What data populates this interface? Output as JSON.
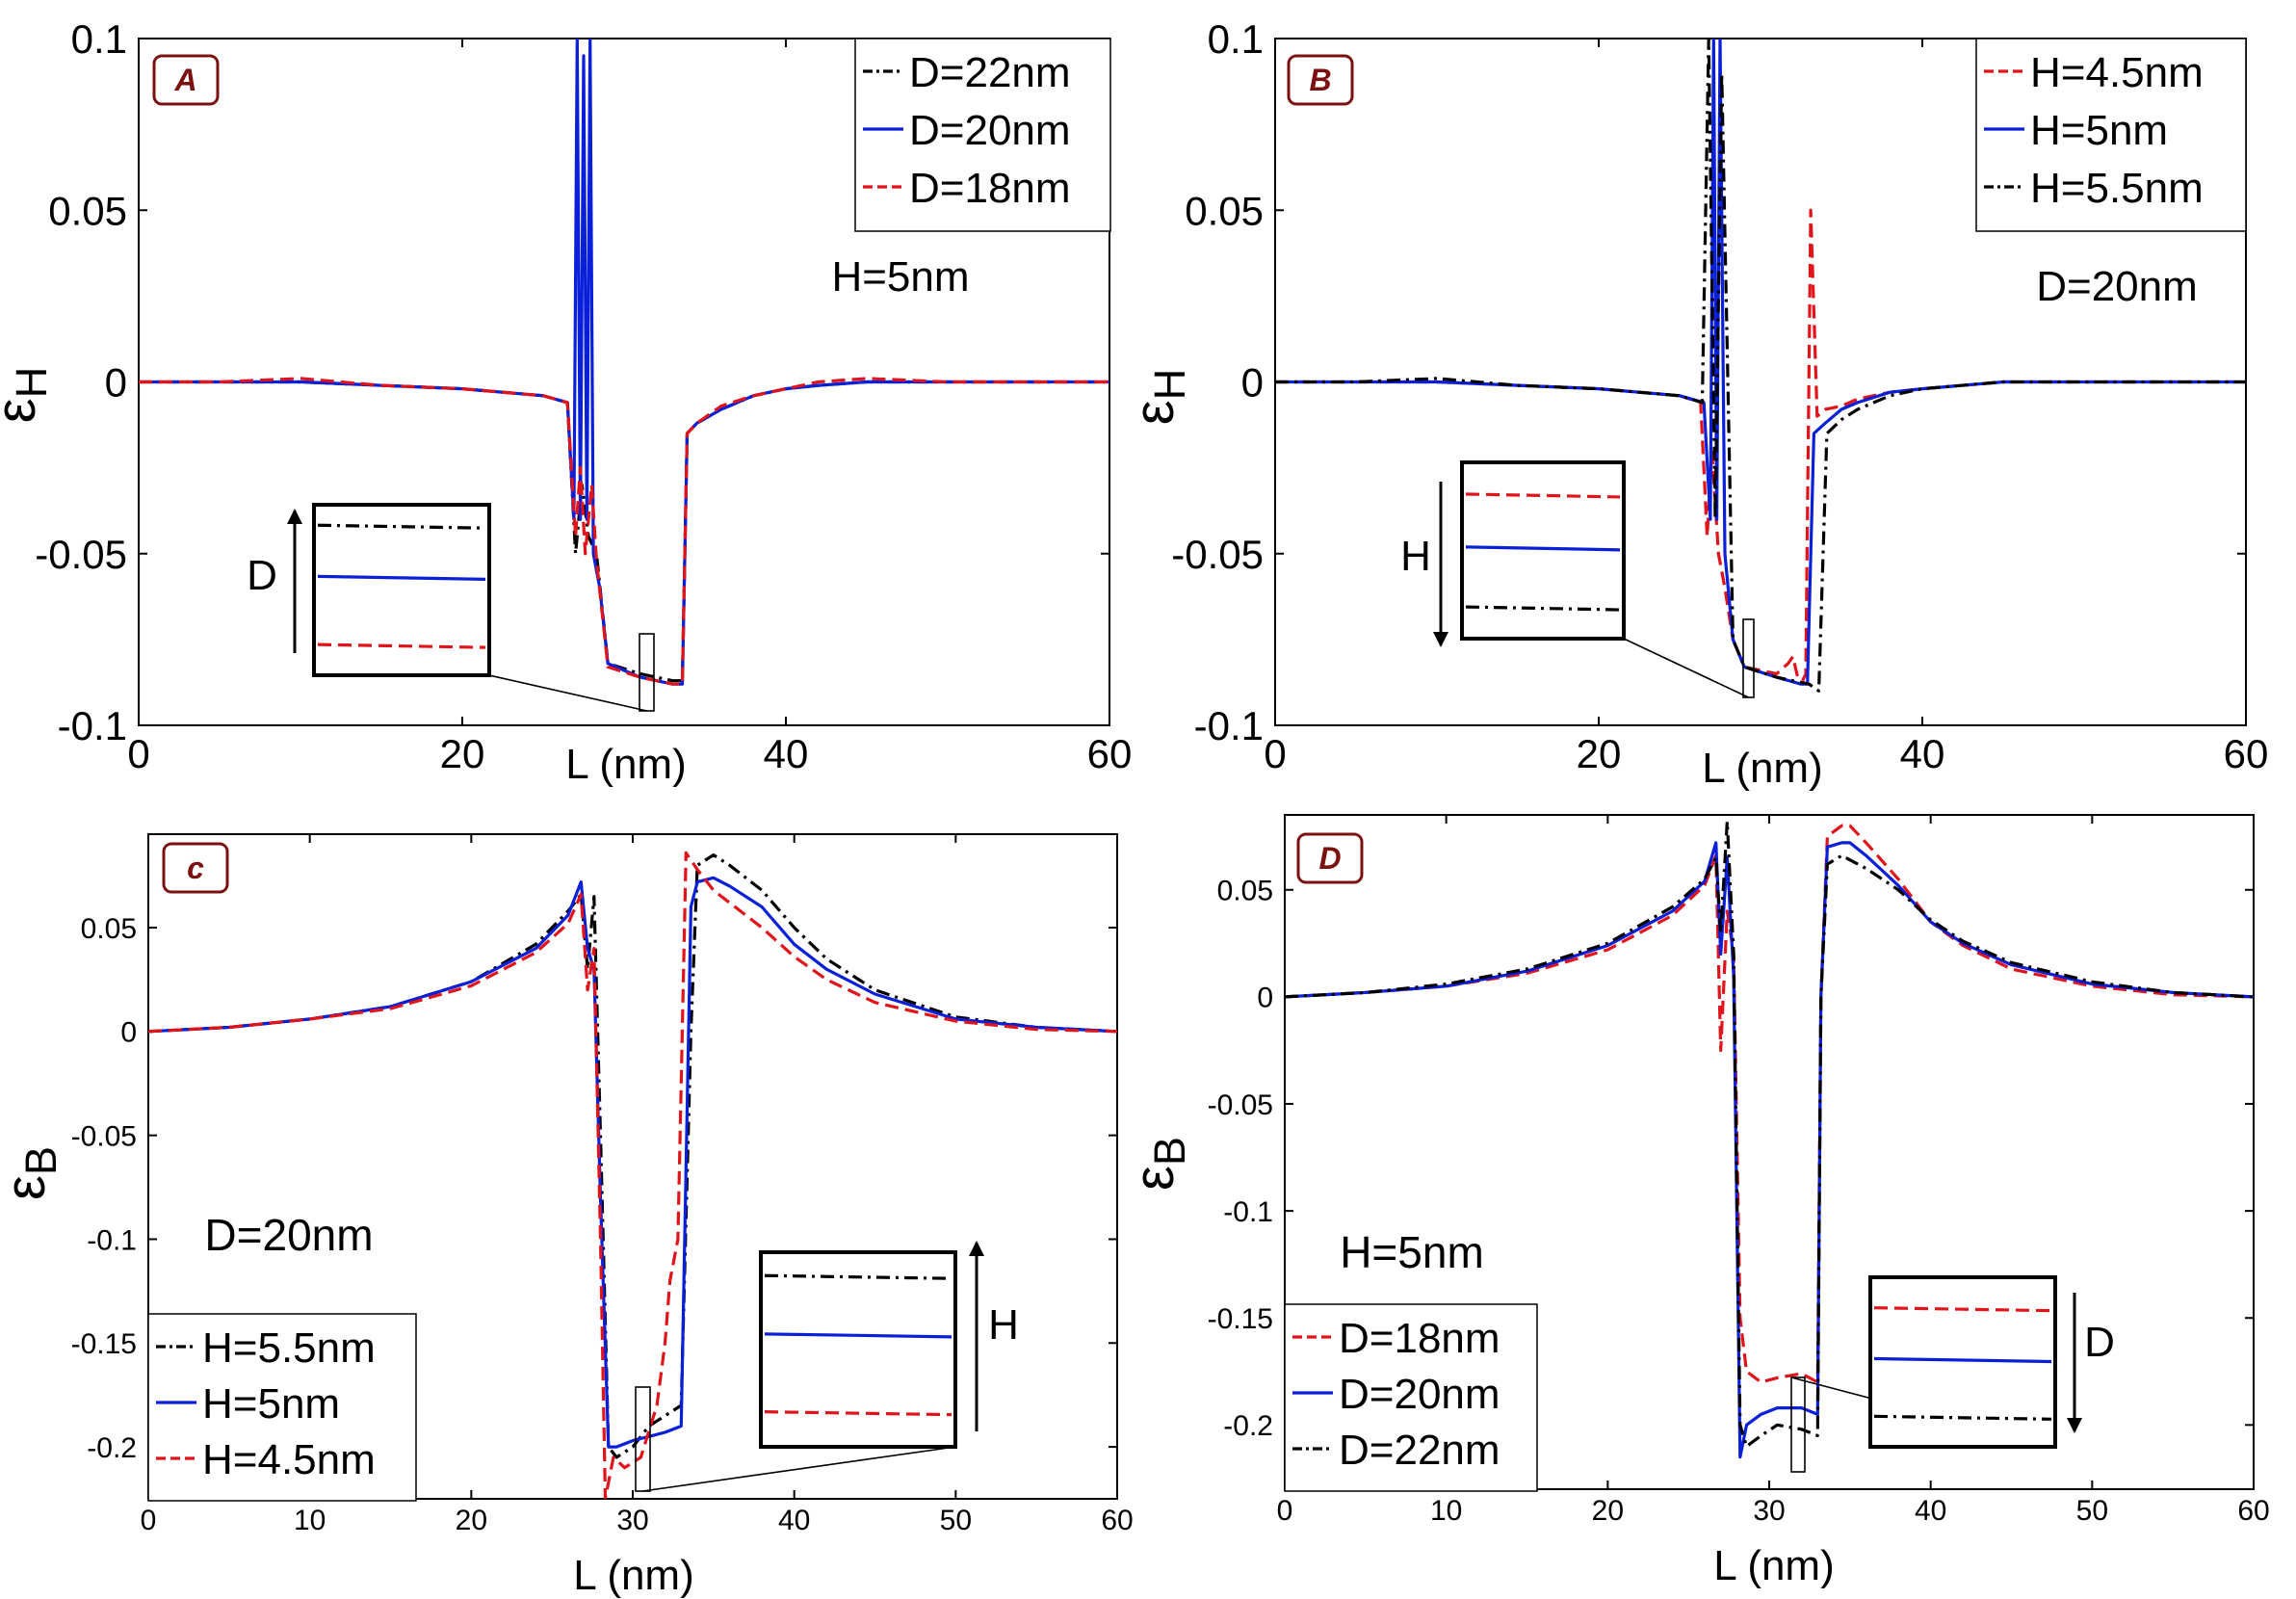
{
  "colors": {
    "black": "#000000",
    "blue": "#0a1fd8",
    "red": "#e0141a",
    "badge_border": "#7a1010",
    "badge_text": "#7a1010"
  },
  "chart_data": [
    {
      "type": "line",
      "panel": "A",
      "xlabel": "L (nm)",
      "ylabel_main": "ε",
      "ylabel_sub": "H",
      "xlim": [
        0,
        60
      ],
      "ylim": [
        -0.1,
        0.1
      ],
      "xticks": [
        "0",
        "20",
        "40",
        "60"
      ],
      "yticks": [
        "-0.1",
        "-0.05",
        "0",
        "0.05",
        "0.1"
      ],
      "annotation": "H=5nm",
      "legend_position": "top-right",
      "inset_arrow_label": "D",
      "inset_arrow_direction": "up",
      "series": [
        {
          "name": "D=22nm",
          "style": "dashdot",
          "color": "black",
          "x": [
            0,
            5,
            10,
            15,
            20,
            25,
            26.5,
            27,
            27.4,
            27.8,
            28.3,
            29,
            31,
            33,
            33.6,
            33.9,
            34.5,
            36,
            38,
            40,
            42,
            45,
            50,
            55,
            60
          ],
          "y": [
            0,
            0,
            0,
            -0.001,
            -0.002,
            -0.004,
            -0.006,
            -0.05,
            -0.03,
            -0.045,
            -0.05,
            -0.082,
            -0.085,
            -0.087,
            -0.087,
            -0.015,
            -0.012,
            -0.008,
            -0.004,
            -0.002,
            -0.001,
            0,
            0,
            0,
            0
          ]
        },
        {
          "name": "D=20nm",
          "style": "solid",
          "color": "blue",
          "x": [
            0,
            5,
            10,
            15,
            20,
            25,
            26.5,
            26.9,
            27.1,
            27.3,
            27.5,
            27.7,
            27.9,
            28.1,
            28.5,
            29,
            31,
            33,
            33.6,
            33.9,
            34.5,
            36,
            38,
            40,
            42,
            45,
            50,
            55,
            60
          ],
          "y": [
            0,
            0,
            0,
            -0.001,
            -0.002,
            -0.004,
            -0.006,
            -0.04,
            0.1,
            -0.04,
            0.095,
            -0.04,
            0.1,
            -0.05,
            -0.06,
            -0.082,
            -0.086,
            -0.088,
            -0.088,
            -0.015,
            -0.012,
            -0.008,
            -0.004,
            -0.002,
            -0.001,
            0,
            0,
            0,
            0
          ]
        },
        {
          "name": "D=18nm",
          "style": "dashed",
          "color": "red",
          "x": [
            0,
            5,
            10,
            15,
            20,
            25,
            26.5,
            27,
            27.3,
            27.6,
            28,
            28.3,
            29,
            31,
            33,
            33.6,
            33.9,
            34.5,
            36,
            38,
            40,
            42,
            45,
            50,
            55,
            60
          ],
          "y": [
            0,
            0,
            0.001,
            -0.001,
            -0.002,
            -0.004,
            -0.006,
            -0.045,
            -0.025,
            -0.05,
            -0.03,
            -0.052,
            -0.083,
            -0.086,
            -0.088,
            -0.088,
            -0.015,
            -0.012,
            -0.007,
            -0.004,
            -0.002,
            0,
            0.001,
            0,
            0,
            0
          ]
        }
      ]
    },
    {
      "type": "line",
      "panel": "B",
      "xlabel": "L (nm)",
      "ylabel_main": "ε",
      "ylabel_sub": "H",
      "xlim": [
        0,
        60
      ],
      "ylim": [
        -0.1,
        0.1
      ],
      "xticks": [
        "0",
        "20",
        "40",
        "60"
      ],
      "yticks": [
        "-0.1",
        "-0.05",
        "0",
        "0.05",
        "0.1"
      ],
      "annotation": "D=20nm",
      "legend_position": "top-right",
      "inset_arrow_label": "H",
      "inset_arrow_direction": "down",
      "series": [
        {
          "name": "H=4.5nm",
          "style": "dashed",
          "color": "red",
          "x": [
            0,
            5,
            10,
            15,
            20,
            25,
            26.3,
            26.7,
            27,
            27.4,
            27.8,
            28.3,
            29,
            31,
            31.7,
            32,
            32.3,
            32.6,
            32.8,
            33.1,
            33.5,
            34,
            35,
            36,
            38,
            40,
            45,
            50,
            55,
            60
          ],
          "y": [
            0,
            0,
            0,
            -0.001,
            -0.002,
            -0.004,
            -0.006,
            -0.045,
            -0.02,
            -0.05,
            -0.06,
            -0.075,
            -0.083,
            -0.085,
            -0.082,
            -0.08,
            -0.086,
            -0.087,
            -0.085,
            0.05,
            -0.01,
            -0.008,
            -0.007,
            -0.005,
            -0.003,
            -0.002,
            0,
            0,
            0,
            0
          ]
        },
        {
          "name": "H=5nm",
          "style": "solid",
          "color": "blue",
          "x": [
            0,
            5,
            10,
            15,
            20,
            25,
            26.5,
            26.9,
            27.1,
            27.3,
            27.5,
            27.8,
            28.3,
            29,
            31,
            32.5,
            32.9,
            33.3,
            34,
            35,
            36,
            38,
            40,
            45,
            50,
            55,
            60
          ],
          "y": [
            0,
            0,
            0,
            -0.001,
            -0.002,
            -0.004,
            -0.006,
            -0.04,
            0.1,
            -0.04,
            0.1,
            -0.05,
            -0.075,
            -0.083,
            -0.086,
            -0.088,
            -0.088,
            -0.015,
            -0.012,
            -0.008,
            -0.006,
            -0.003,
            -0.002,
            0,
            0,
            0,
            0
          ]
        },
        {
          "name": "H=5.5nm",
          "style": "dashdot",
          "color": "black",
          "x": [
            0,
            5,
            10,
            15,
            20,
            25,
            26.4,
            26.8,
            27.2,
            27.6,
            28.3,
            29,
            31,
            33,
            33.6,
            34.1,
            35,
            36,
            38,
            40,
            45,
            50,
            55,
            60
          ],
          "y": [
            0,
            0,
            0.001,
            -0.001,
            -0.002,
            -0.004,
            -0.006,
            0.1,
            -0.04,
            0.09,
            -0.075,
            -0.083,
            -0.086,
            -0.088,
            -0.09,
            -0.015,
            -0.011,
            -0.008,
            -0.004,
            -0.002,
            0,
            0,
            0,
            0
          ]
        }
      ]
    },
    {
      "type": "line",
      "panel": "c",
      "xlabel": "L (nm)",
      "ylabel_main": "ε",
      "ylabel_sub": "B",
      "xlim": [
        0,
        60
      ],
      "ylim": [
        -0.225,
        0.095
      ],
      "xticks": [
        "0",
        "10",
        "20",
        "30",
        "40",
        "50",
        "60"
      ],
      "yticks": [
        "-0.2",
        "-0.15",
        "-0.1",
        "-0.05",
        "0",
        "0.05"
      ],
      "annotation": "D=20nm",
      "legend_position": "bottom-left",
      "inset_arrow_label": "H",
      "inset_arrow_direction": "up",
      "series": [
        {
          "name": "H=5.5nm",
          "style": "dashdot",
          "color": "black",
          "x": [
            0,
            5,
            10,
            15,
            20,
            24,
            26,
            26.8,
            27.2,
            27.6,
            28,
            28.5,
            29,
            30,
            31,
            32,
            33,
            33.6,
            34,
            35,
            36,
            38,
            40,
            42,
            45,
            50,
            55,
            60
          ],
          "y": [
            0,
            0.002,
            0.006,
            0.012,
            0.024,
            0.042,
            0.058,
            0.066,
            0.03,
            0.065,
            -0.05,
            -0.2,
            -0.205,
            -0.2,
            -0.19,
            -0.185,
            -0.18,
            0.0,
            0.08,
            0.085,
            0.08,
            0.068,
            0.05,
            0.035,
            0.02,
            0.007,
            0.002,
            0
          ]
        },
        {
          "name": "H=5nm",
          "style": "solid",
          "color": "blue",
          "x": [
            0,
            5,
            10,
            15,
            20,
            24,
            26,
            26.8,
            27.2,
            27.6,
            28,
            28.5,
            29,
            30,
            31,
            32,
            33,
            33.6,
            34,
            35,
            36,
            38,
            40,
            42,
            45,
            50,
            55,
            60
          ],
          "y": [
            0,
            0.002,
            0.006,
            0.012,
            0.024,
            0.04,
            0.056,
            0.072,
            0.04,
            0.03,
            -0.08,
            -0.2,
            -0.2,
            -0.197,
            -0.195,
            -0.193,
            -0.19,
            0.06,
            0.072,
            0.074,
            0.07,
            0.06,
            0.042,
            0.03,
            0.018,
            0.006,
            0.002,
            0
          ]
        },
        {
          "name": "H=4.5nm",
          "style": "dashed",
          "color": "red",
          "x": [
            0,
            5,
            10,
            15,
            20,
            24,
            26,
            26.8,
            27.2,
            27.6,
            28,
            28.3,
            28.8,
            29.5,
            30.5,
            31.5,
            32,
            32.3,
            32.8,
            33.3,
            34,
            35,
            36,
            38,
            40,
            42,
            45,
            50,
            55,
            60
          ],
          "y": [
            0,
            0.002,
            0.006,
            0.011,
            0.022,
            0.038,
            0.052,
            0.066,
            0.02,
            0.04,
            -0.1,
            -0.225,
            -0.205,
            -0.21,
            -0.205,
            -0.18,
            -0.15,
            -0.12,
            -0.1,
            0.086,
            0.078,
            0.068,
            0.062,
            0.05,
            0.036,
            0.025,
            0.014,
            0.005,
            0.001,
            0
          ]
        }
      ]
    },
    {
      "type": "line",
      "panel": "D",
      "xlabel": "L (nm)",
      "ylabel_main": "ε",
      "ylabel_sub": "B",
      "xlim": [
        0,
        60
      ],
      "ylim": [
        -0.23,
        0.085
      ],
      "xticks": [
        "0",
        "10",
        "20",
        "30",
        "40",
        "50",
        "60"
      ],
      "yticks": [
        "-0.2",
        "-0.15",
        "-0.1",
        "-0.05",
        "0",
        "0.05"
      ],
      "annotation": "H=5nm",
      "legend_position": "bottom-left",
      "inset_arrow_label": "D",
      "inset_arrow_direction": "down",
      "series": [
        {
          "name": "D=18nm",
          "style": "dashed",
          "color": "red",
          "x": [
            0,
            5,
            10,
            15,
            20,
            24,
            26,
            26.7,
            27,
            27.4,
            27.8,
            28.2,
            28.6,
            29.5,
            30.5,
            32,
            33,
            33.2,
            33.6,
            34.5,
            35,
            36,
            38,
            40,
            42,
            45,
            50,
            55,
            60
          ],
          "y": [
            0,
            0.002,
            0.005,
            0.011,
            0.022,
            0.038,
            0.052,
            0.066,
            -0.025,
            0.04,
            0.02,
            -0.15,
            -0.175,
            -0.18,
            -0.178,
            -0.176,
            -0.18,
            0.0,
            0.075,
            0.08,
            0.08,
            0.072,
            0.055,
            0.035,
            0.024,
            0.013,
            0.005,
            0.001,
            0
          ]
        },
        {
          "name": "D=20nm",
          "style": "solid",
          "color": "blue",
          "x": [
            0,
            5,
            10,
            15,
            20,
            24,
            26,
            26.7,
            27,
            27.4,
            27.8,
            28.2,
            28.6,
            29.5,
            30.5,
            32,
            33,
            33.2,
            33.6,
            34.5,
            35,
            36,
            38,
            40,
            42,
            45,
            50,
            55,
            60
          ],
          "y": [
            0,
            0.002,
            0.005,
            0.012,
            0.024,
            0.04,
            0.054,
            0.072,
            0.02,
            0.065,
            0.01,
            -0.215,
            -0.2,
            -0.195,
            -0.192,
            -0.192,
            -0.195,
            0.0,
            0.07,
            0.072,
            0.072,
            0.066,
            0.052,
            0.035,
            0.025,
            0.015,
            0.006,
            0.002,
            0
          ]
        },
        {
          "name": "D=22nm",
          "style": "dashdot",
          "color": "black",
          "x": [
            0,
            5,
            10,
            15,
            20,
            24,
            26,
            26.7,
            27,
            27.4,
            27.8,
            28.2,
            28.6,
            29.5,
            30.5,
            32,
            33,
            33.2,
            33.6,
            34.5,
            35,
            36,
            38,
            40,
            42,
            45,
            50,
            55,
            60
          ],
          "y": [
            0,
            0.002,
            0.006,
            0.013,
            0.025,
            0.042,
            0.055,
            0.065,
            0.03,
            0.082,
            0.02,
            -0.2,
            -0.21,
            -0.205,
            -0.2,
            -0.202,
            -0.205,
            0.0,
            0.062,
            0.066,
            0.064,
            0.06,
            0.05,
            0.036,
            0.026,
            0.016,
            0.007,
            0.002,
            0
          ]
        }
      ]
    }
  ]
}
